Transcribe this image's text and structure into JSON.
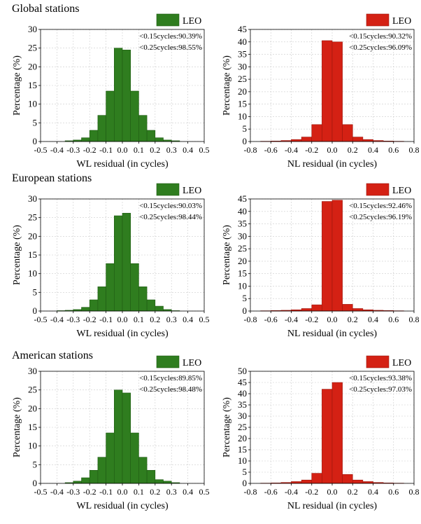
{
  "sections": [
    {
      "title": "Global stations"
    },
    {
      "title": "European stations"
    },
    {
      "title": "American stations"
    }
  ],
  "colors": {
    "wl_bar": "#2f7d1f",
    "wl_bar_stroke": "#1f5a13",
    "nl_bar": "#d42114",
    "nl_bar_stroke": "#9a160c",
    "grid": "#cccccc"
  },
  "chart_data": [
    {
      "type": "bar",
      "panel": "global-wl",
      "xlabel": "WL residual (in cycles)",
      "ylabel": "Percentage (%)",
      "legend": "LEO",
      "legend_position": "top-right",
      "stats": [
        "<0.15cycles:90.39%",
        "<0.25cycles:98.55%"
      ],
      "xlim": [
        -0.5,
        0.5
      ],
      "ylim": [
        0,
        30
      ],
      "bin_width": 0.05,
      "grid": true,
      "xticks": [
        "-0.5",
        "-0.4",
        "-0.3",
        "-0.2",
        "-0.1",
        "0.0",
        "0.1",
        "0.2",
        "0.3",
        "0.4",
        "0.5"
      ],
      "yticks": [
        "0",
        "5",
        "10",
        "15",
        "20",
        "25",
        "30"
      ],
      "bin_centers": [
        -0.325,
        -0.275,
        -0.225,
        -0.175,
        -0.125,
        -0.075,
        -0.025,
        0.025,
        0.075,
        0.125,
        0.175,
        0.225,
        0.275,
        0.325
      ],
      "values": [
        0.2,
        0.4,
        1.0,
        3.0,
        7.0,
        13.5,
        25.0,
        24.5,
        13.5,
        7.0,
        3.0,
        1.0,
        0.4,
        0.2
      ]
    },
    {
      "type": "bar",
      "panel": "global-nl",
      "xlabel": "NL residual (in cycles)",
      "ylabel": "Percentage (%)",
      "legend": "LEO",
      "legend_position": "top-right",
      "stats": [
        "<0.15cycles:90.32%",
        "<0.25cycles:96.09%"
      ],
      "xlim": [
        -0.8,
        0.8
      ],
      "ylim": [
        0,
        45
      ],
      "bin_width": 0.1,
      "grid": true,
      "xticks": [
        "-0.8",
        "-0.6",
        "-0.4",
        "-0.2",
        "0.0",
        "0.2",
        "0.4",
        "0.6",
        "0.8"
      ],
      "yticks": [
        "0",
        "5",
        "10",
        "15",
        "20",
        "25",
        "30",
        "35",
        "40",
        "45"
      ],
      "bin_centers": [
        -0.65,
        -0.55,
        -0.45,
        -0.35,
        -0.25,
        -0.15,
        -0.05,
        0.05,
        0.15,
        0.25,
        0.35,
        0.45,
        0.55,
        0.65
      ],
      "values": [
        0.1,
        0.2,
        0.4,
        0.8,
        1.8,
        6.8,
        40.5,
        40.0,
        6.8,
        1.8,
        0.8,
        0.4,
        0.2,
        0.1
      ]
    },
    {
      "type": "bar",
      "panel": "european-wl",
      "xlabel": "WL residual (in cycles)",
      "ylabel": "Percentage (%)",
      "legend": "LEO",
      "legend_position": "top-right",
      "stats": [
        "<0.15cycles:90.03%",
        "<0.25cycles:98.44%"
      ],
      "xlim": [
        -0.5,
        0.5
      ],
      "ylim": [
        0,
        30
      ],
      "bin_width": 0.05,
      "grid": true,
      "xticks": [
        "-0.5",
        "-0.4",
        "-0.3",
        "-0.2",
        "-0.1",
        "0.0",
        "0.1",
        "0.2",
        "0.3",
        "0.4",
        "0.5"
      ],
      "yticks": [
        "0",
        "5",
        "10",
        "15",
        "20",
        "25",
        "30"
      ],
      "bin_centers": [
        -0.375,
        -0.325,
        -0.275,
        -0.225,
        -0.175,
        -0.125,
        -0.075,
        -0.025,
        0.025,
        0.075,
        0.125,
        0.175,
        0.225,
        0.275,
        0.325
      ],
      "values": [
        0.1,
        0.2,
        0.4,
        1.0,
        3.0,
        6.5,
        12.7,
        25.5,
        26.2,
        12.7,
        6.5,
        3.0,
        1.3,
        0.4,
        0.1
      ]
    },
    {
      "type": "bar",
      "panel": "european-nl",
      "xlabel": "NL residual (in cycles)",
      "ylabel": "Percentage (%)",
      "legend": "LEO",
      "legend_position": "top-right",
      "stats": [
        "<0.15cycles:92.46%",
        "<0.25cycles:96.19%"
      ],
      "xlim": [
        -0.8,
        0.8
      ],
      "ylim": [
        0,
        45
      ],
      "bin_width": 0.1,
      "grid": true,
      "xticks": [
        "-0.8",
        "-0.6",
        "-0.4",
        "-0.2",
        "0.0",
        "0.2",
        "0.4",
        "0.6",
        "0.8"
      ],
      "yticks": [
        "0",
        "5",
        "10",
        "15",
        "20",
        "25",
        "30",
        "35",
        "40",
        "45"
      ],
      "bin_centers": [
        -0.65,
        -0.55,
        -0.45,
        -0.35,
        -0.25,
        -0.15,
        -0.05,
        0.05,
        0.15,
        0.25,
        0.35,
        0.45,
        0.55,
        0.65
      ],
      "values": [
        0.1,
        0.2,
        0.3,
        0.5,
        1.0,
        2.5,
        44.0,
        44.5,
        2.7,
        1.0,
        0.5,
        0.3,
        0.2,
        0.1
      ]
    },
    {
      "type": "bar",
      "panel": "american-wl",
      "xlabel": "WL residual (in cycles)",
      "ylabel": "Percentage (%)",
      "legend": "LEO",
      "legend_position": "top-right",
      "stats": [
        "<0.15cycles:89.85%",
        "<0.25cycles:98.48%"
      ],
      "xlim": [
        -0.5,
        0.5
      ],
      "ylim": [
        0,
        30
      ],
      "bin_width": 0.05,
      "grid": true,
      "xticks": [
        "-0.5",
        "-0.4",
        "-0.3",
        "-0.2",
        "-0.1",
        "0.0",
        "0.1",
        "0.2",
        "0.3",
        "0.4",
        "0.5"
      ],
      "yticks": [
        "0",
        "5",
        "10",
        "15",
        "20",
        "25",
        "30"
      ],
      "bin_centers": [
        -0.325,
        -0.275,
        -0.225,
        -0.175,
        -0.125,
        -0.075,
        -0.025,
        0.025,
        0.075,
        0.125,
        0.175,
        0.225,
        0.275,
        0.325
      ],
      "values": [
        0.2,
        0.6,
        1.5,
        3.5,
        7.0,
        13.5,
        25.0,
        24.2,
        13.5,
        7.0,
        3.5,
        1.0,
        0.6,
        0.2
      ]
    },
    {
      "type": "bar",
      "panel": "american-nl",
      "xlabel": "NL residual (in cycles)",
      "ylabel": "Percentage (%)",
      "legend": "LEO",
      "legend_position": "top-right",
      "stats": [
        "<0.15cycles:93.38%",
        "<0.25cycles:97.03%"
      ],
      "xlim": [
        -0.8,
        0.8
      ],
      "ylim": [
        0,
        50
      ],
      "bin_width": 0.1,
      "grid": true,
      "xticks": [
        "-0.8",
        "-0.6",
        "-0.4",
        "-0.2",
        "0.0",
        "0.2",
        "0.4",
        "0.6",
        "0.8"
      ],
      "yticks": [
        "0",
        "5",
        "10",
        "15",
        "20",
        "25",
        "30",
        "35",
        "40",
        "45",
        "50"
      ],
      "bin_centers": [
        -0.65,
        -0.55,
        -0.45,
        -0.35,
        -0.25,
        -0.15,
        -0.05,
        0.05,
        0.15,
        0.25,
        0.35,
        0.45,
        0.55,
        0.65
      ],
      "values": [
        0.1,
        0.2,
        0.4,
        0.8,
        1.5,
        4.5,
        42.0,
        45.0,
        4.0,
        1.5,
        0.8,
        0.4,
        0.2,
        0.1
      ]
    }
  ]
}
